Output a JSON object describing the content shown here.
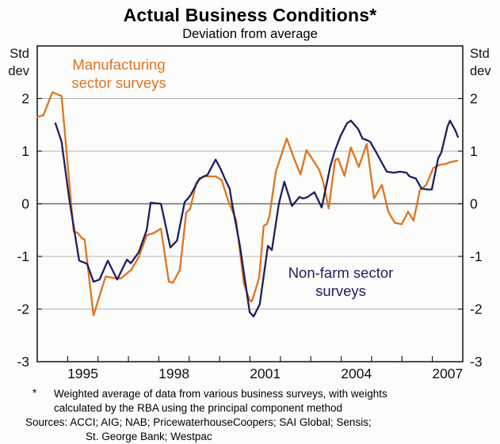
{
  "header": {
    "title": "Actual Business Conditions*",
    "subtitle": "Deviation from average"
  },
  "axes": {
    "y_unit_label": "Std dev",
    "y_ticks": [
      2,
      1,
      0,
      -1,
      -2,
      -3
    ],
    "x_tick_years_labeled": [
      1995,
      1998,
      2001,
      2004,
      2007
    ]
  },
  "labels": {
    "manufacturing": [
      "Manufacturing",
      "sector surveys"
    ],
    "nonfarm": [
      "Non-farm sector",
      "surveys"
    ]
  },
  "footnote": {
    "asterisk": "*",
    "line1": "Weighted average of data from various business surveys, with weights",
    "line2": "calculated by the RBA using the principal component method",
    "sources_line1": "Sources: ACCI; AIG; NAB; PricewaterhouseCoopers; SAI Global; Sensis;",
    "sources_line2": "St. George Bank; Westpac"
  },
  "colors": {
    "manufacturing": "#de7420",
    "nonfarm": "#211d60",
    "grid": "#b3b3b3",
    "zero_line": "#6e6e6e",
    "frame": "#1f1f1f"
  },
  "chart_data": {
    "type": "line",
    "title": "Actual Business Conditions",
    "subtitle": "Deviation from average",
    "ylabel": "Std dev",
    "xlabel": "",
    "ylim": [
      -3,
      3
    ],
    "xlim": [
      1994,
      2008
    ],
    "grid": "horizontal",
    "legend_position": "inline-annotations",
    "x_units": "decimal years (quarterly survey observations)",
    "series": [
      {
        "id": "manufacturing",
        "name": "Manufacturing sector surveys",
        "color": "#de7420",
        "points": [
          [
            1994.0,
            1.65
          ],
          [
            1994.2,
            1.68
          ],
          [
            1994.5,
            2.12
          ],
          [
            1994.7,
            2.07
          ],
          [
            1994.8,
            2.05
          ],
          [
            1995.2,
            -0.53
          ],
          [
            1995.33,
            -0.55
          ],
          [
            1995.46,
            -0.65
          ],
          [
            1995.56,
            -0.68
          ],
          [
            1995.85,
            -2.12
          ],
          [
            1996.25,
            -1.38
          ],
          [
            1996.5,
            -1.41
          ],
          [
            1996.75,
            -1.42
          ],
          [
            1997.1,
            -1.25
          ],
          [
            1997.35,
            -1.0
          ],
          [
            1997.6,
            -0.6
          ],
          [
            1997.85,
            -0.55
          ],
          [
            1998.07,
            -0.47
          ],
          [
            1998.33,
            -1.48
          ],
          [
            1998.46,
            -1.5
          ],
          [
            1998.69,
            -1.26
          ],
          [
            1998.9,
            -0.17
          ],
          [
            1999.03,
            -0.1
          ],
          [
            1999.24,
            0.41
          ],
          [
            1999.47,
            0.52
          ],
          [
            1999.87,
            0.52
          ],
          [
            2000.07,
            0.45
          ],
          [
            2000.26,
            0.1
          ],
          [
            2000.41,
            -0.12
          ],
          [
            2000.54,
            -0.3
          ],
          [
            2000.8,
            -1.52
          ],
          [
            2000.99,
            -1.83
          ],
          [
            2001.06,
            -1.86
          ],
          [
            2001.3,
            -1.41
          ],
          [
            2001.45,
            -0.42
          ],
          [
            2001.56,
            -0.38
          ],
          [
            2001.64,
            -0.24
          ],
          [
            2001.85,
            0.61
          ],
          [
            2002.21,
            1.24
          ],
          [
            2002.45,
            0.86
          ],
          [
            2002.66,
            0.56
          ],
          [
            2002.86,
            1.02
          ],
          [
            2003.07,
            0.83
          ],
          [
            2003.28,
            0.64
          ],
          [
            2003.41,
            0.41
          ],
          [
            2003.59,
            -0.09
          ],
          [
            2003.8,
            0.83
          ],
          [
            2003.9,
            0.86
          ],
          [
            2004.11,
            0.53
          ],
          [
            2004.32,
            1.07
          ],
          [
            2004.58,
            0.7
          ],
          [
            2004.84,
            1.14
          ],
          [
            2005.08,
            0.1
          ],
          [
            2005.34,
            0.36
          ],
          [
            2005.55,
            -0.15
          ],
          [
            2005.76,
            -0.36
          ],
          [
            2005.99,
            -0.39
          ],
          [
            2006.2,
            -0.15
          ],
          [
            2006.38,
            -0.32
          ],
          [
            2006.59,
            0.26
          ],
          [
            2006.8,
            0.36
          ],
          [
            2007.03,
            0.68
          ],
          [
            2007.24,
            0.74
          ],
          [
            2007.45,
            0.76
          ],
          [
            2007.58,
            0.79
          ],
          [
            2007.82,
            0.82
          ]
        ]
      },
      {
        "id": "non_farm",
        "name": "Non-farm sector surveys",
        "color": "#211d60",
        "points": [
          [
            1994.6,
            1.53
          ],
          [
            1994.8,
            1.18
          ],
          [
            1995.05,
            0.1
          ],
          [
            1995.38,
            -1.08
          ],
          [
            1995.64,
            -1.14
          ],
          [
            1995.85,
            -1.48
          ],
          [
            1996.05,
            -1.44
          ],
          [
            1996.32,
            -1.08
          ],
          [
            1996.63,
            -1.44
          ],
          [
            1996.95,
            -1.06
          ],
          [
            1997.08,
            -1.13
          ],
          [
            1997.34,
            -0.92
          ],
          [
            1997.6,
            -0.5
          ],
          [
            1997.73,
            0.02
          ],
          [
            1998.07,
            0.0
          ],
          [
            1998.38,
            -0.83
          ],
          [
            1998.6,
            -0.7
          ],
          [
            1998.85,
            0.03
          ],
          [
            1999.03,
            0.15
          ],
          [
            1999.34,
            0.48
          ],
          [
            1999.6,
            0.55
          ],
          [
            1999.87,
            0.84
          ],
          [
            2000.05,
            0.64
          ],
          [
            2000.2,
            0.44
          ],
          [
            2000.33,
            0.29
          ],
          [
            2000.41,
            0.0
          ],
          [
            2000.67,
            -0.8
          ],
          [
            2000.99,
            -2.06
          ],
          [
            2001.12,
            -2.14
          ],
          [
            2001.32,
            -1.91
          ],
          [
            2001.59,
            -0.8
          ],
          [
            2001.72,
            -0.88
          ],
          [
            2001.95,
            0.0
          ],
          [
            2002.13,
            0.42
          ],
          [
            2002.38,
            -0.04
          ],
          [
            2002.63,
            0.13
          ],
          [
            2002.76,
            0.1
          ],
          [
            2002.89,
            0.13
          ],
          [
            2003.12,
            0.22
          ],
          [
            2003.36,
            -0.07
          ],
          [
            2003.64,
            0.71
          ],
          [
            2003.8,
            1.02
          ],
          [
            2003.98,
            1.29
          ],
          [
            2004.19,
            1.53
          ],
          [
            2004.32,
            1.58
          ],
          [
            2004.56,
            1.42
          ],
          [
            2004.7,
            1.24
          ],
          [
            2004.84,
            1.21
          ],
          [
            2004.95,
            1.18
          ],
          [
            2005.16,
            0.97
          ],
          [
            2005.29,
            0.83
          ],
          [
            2005.5,
            0.61
          ],
          [
            2005.73,
            0.59
          ],
          [
            2005.94,
            0.61
          ],
          [
            2006.15,
            0.59
          ],
          [
            2006.25,
            0.52
          ],
          [
            2006.46,
            0.48
          ],
          [
            2006.64,
            0.29
          ],
          [
            2006.85,
            0.27
          ],
          [
            2006.98,
            0.27
          ],
          [
            2007.19,
            0.86
          ],
          [
            2007.3,
            0.98
          ],
          [
            2007.5,
            1.47
          ],
          [
            2007.58,
            1.58
          ],
          [
            2007.76,
            1.39
          ],
          [
            2007.84,
            1.27
          ]
        ]
      }
    ]
  }
}
